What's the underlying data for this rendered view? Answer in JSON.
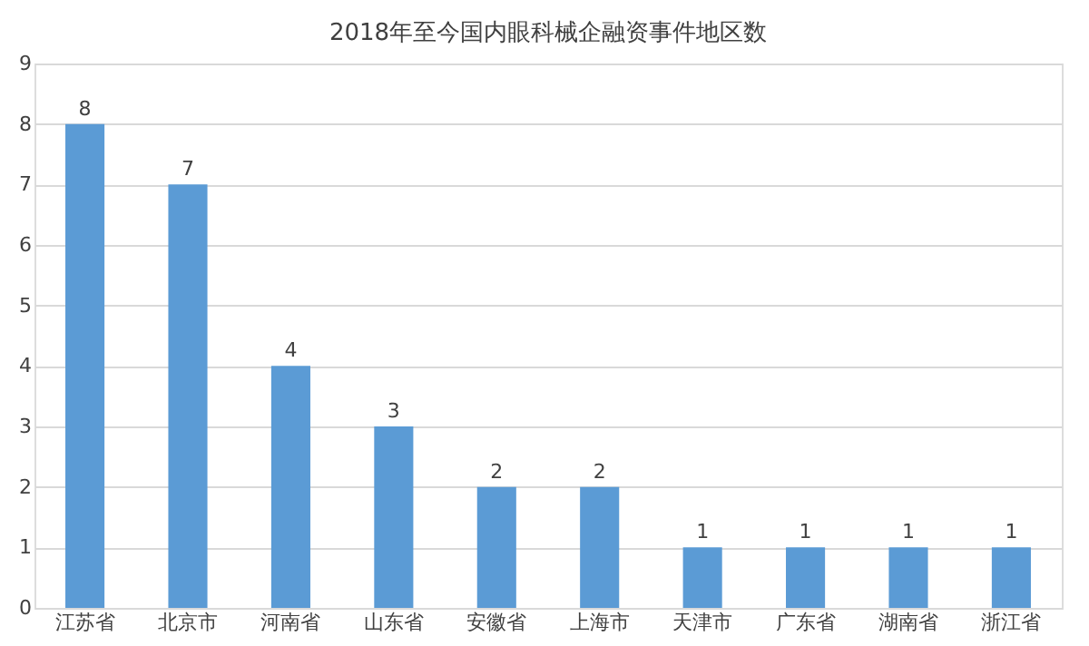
{
  "chart_data": {
    "type": "bar",
    "title": "2018年至今国内眼科械企融资事件地区数",
    "categories": [
      "江苏省",
      "北京市",
      "河南省",
      "山东省",
      "安徽省",
      "上海市",
      "天津市",
      "广东省",
      "湖南省",
      "浙江省"
    ],
    "values": [
      8,
      7,
      4,
      3,
      2,
      2,
      1,
      1,
      1,
      1
    ],
    "color": "#5b9bd5",
    "ylim": [
      0,
      9
    ],
    "yticks": [
      0,
      1,
      2,
      3,
      4,
      5,
      6,
      7,
      8,
      9
    ],
    "grid": "y",
    "data_labels": true,
    "legend": false
  }
}
